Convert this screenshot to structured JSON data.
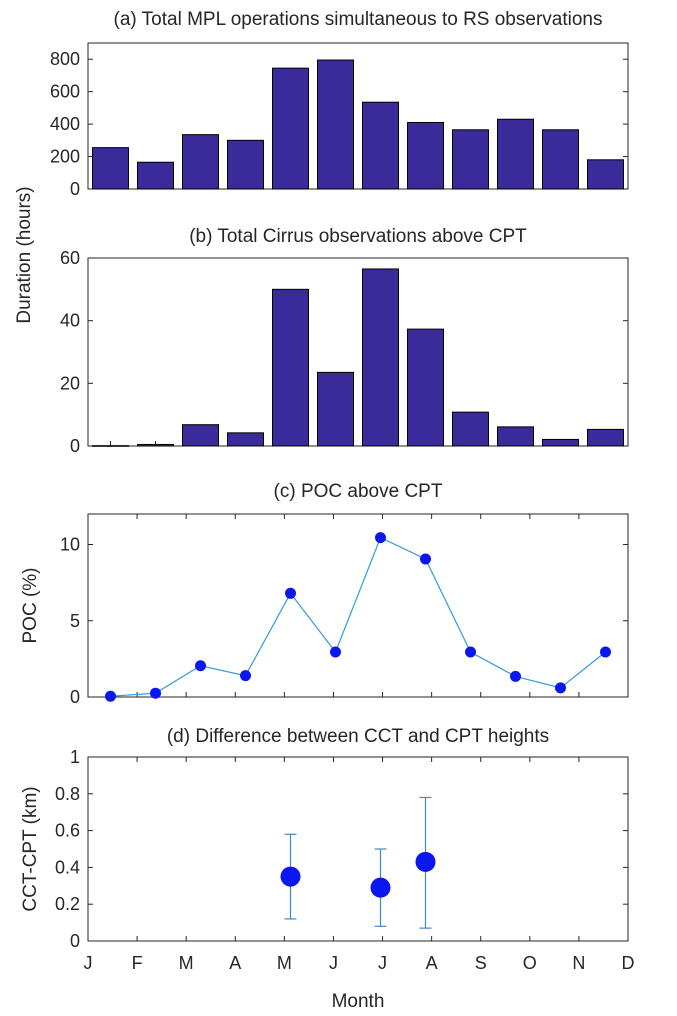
{
  "figure": {
    "ylabel_shared": "Duration (hours)",
    "xlabel": "Month",
    "month_ticks": [
      "J",
      "F",
      "M",
      "A",
      "M",
      "J",
      "J",
      "A",
      "S",
      "O",
      "N",
      "D"
    ]
  },
  "colors": {
    "bar_fill": "#3a2a9a",
    "bar_edge": "#000000",
    "line": "#3399dd",
    "marker": "#0a17ee",
    "errorbar": "#3a8ac8",
    "axis": "#262626"
  },
  "chart_data": [
    {
      "id": "a",
      "type": "bar",
      "title": "(a) Total MPL operations simultaneous to RS observations",
      "ylabel": "",
      "ylim": [
        0,
        900
      ],
      "yticks": [
        0,
        200,
        400,
        600,
        800
      ],
      "x": [
        1,
        2,
        3,
        4,
        5,
        6,
        7,
        8,
        9,
        10,
        11,
        12
      ],
      "values": [
        255,
        165,
        335,
        300,
        745,
        795,
        535,
        410,
        365,
        430,
        365,
        180
      ]
    },
    {
      "id": "b",
      "type": "bar",
      "title": "(b) Total Cirrus observations above CPT",
      "ylabel": "",
      "ylim": [
        0,
        60
      ],
      "yticks": [
        0,
        20,
        40,
        60
      ],
      "x": [
        1,
        2,
        3,
        4,
        5,
        6,
        7,
        8,
        9,
        10,
        11,
        12
      ],
      "values": [
        0.1,
        0.5,
        6.8,
        4.2,
        50,
        23.5,
        56.5,
        37.3,
        10.8,
        6.1,
        2.1,
        5.3
      ]
    },
    {
      "id": "c",
      "type": "line",
      "title": "(c) POC above CPT",
      "ylabel": "POC (%)",
      "ylim": [
        0,
        12
      ],
      "yticks": [
        0,
        5,
        10
      ],
      "x": [
        1,
        2,
        3,
        4,
        5,
        6,
        7,
        8,
        9,
        10,
        11,
        12
      ],
      "values": [
        0.05,
        0.25,
        2.05,
        1.4,
        6.8,
        2.95,
        10.45,
        9.05,
        2.95,
        1.35,
        0.6,
        2.95
      ]
    },
    {
      "id": "d",
      "type": "scatter",
      "title": "(d) Difference between CCT and CPT heights",
      "ylabel": "CCT-CPT (km)",
      "ylim": [
        0,
        1
      ],
      "yticks": [
        0,
        0.2,
        0.4,
        0.6,
        0.8,
        1
      ],
      "ytick_labels": [
        "0",
        "0.2",
        "0.4",
        "0.6",
        "0.8",
        "1"
      ],
      "x": [
        5,
        7,
        8
      ],
      "values": [
        0.35,
        0.29,
        0.43
      ],
      "err_low": [
        0.12,
        0.08,
        0.07
      ],
      "err_high": [
        0.58,
        0.5,
        0.78
      ]
    }
  ]
}
